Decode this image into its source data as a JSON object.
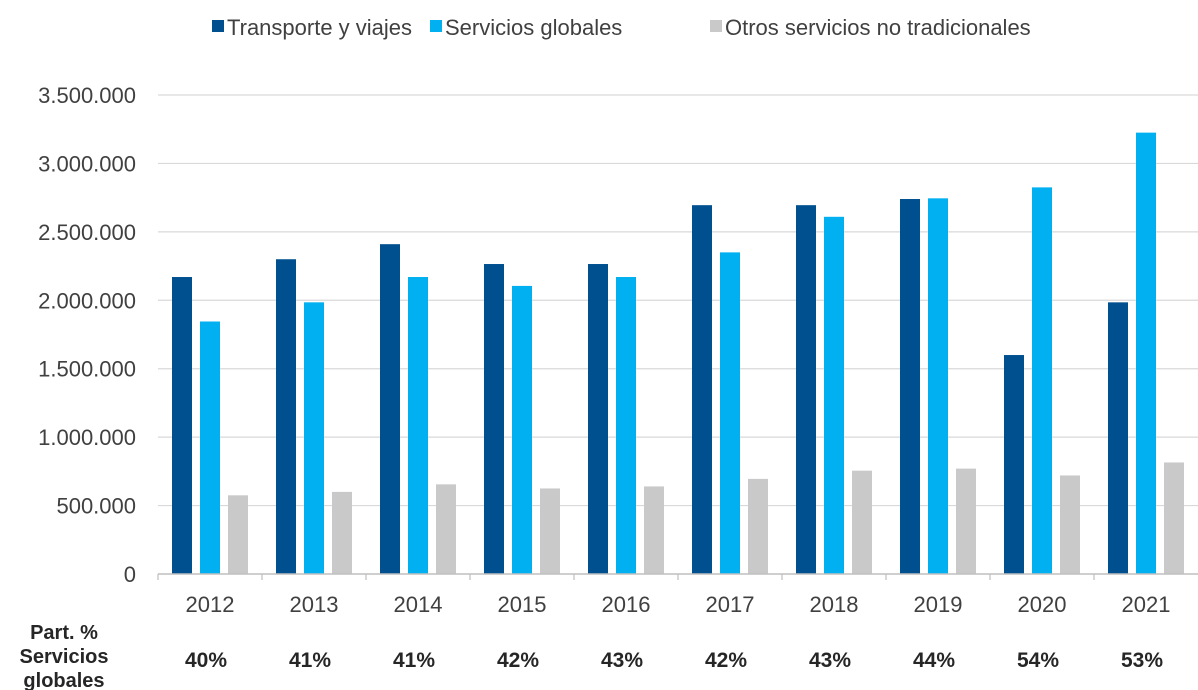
{
  "chart_data": {
    "type": "bar",
    "categories": [
      "2012",
      "2013",
      "2014",
      "2015",
      "2016",
      "2017",
      "2018",
      "2019",
      "2020",
      "2021"
    ],
    "series": [
      {
        "name": "Transporte y viajes",
        "color": "#00508f",
        "values": [
          2170000,
          2300000,
          2410000,
          2265000,
          2265000,
          2695000,
          2695000,
          2740000,
          1600000,
          1985000
        ]
      },
      {
        "name": "Servicios globales",
        "color": "#00b0f0",
        "values": [
          1845000,
          1985000,
          2170000,
          2105000,
          2170000,
          2350000,
          2610000,
          2745000,
          2825000,
          3225000
        ]
      },
      {
        "name": "Otros servicios no tradicionales",
        "color": "#c9c9c9",
        "values": [
          575000,
          600000,
          655000,
          625000,
          640000,
          695000,
          755000,
          770000,
          720000,
          815000
        ]
      }
    ],
    "yticks": [
      "0",
      "500.000",
      "1.000.000",
      "1.500.000",
      "2.000.000",
      "2.500.000",
      "3.000.000",
      "3.500.000"
    ],
    "ylim": [
      0,
      3500000
    ],
    "grid": true,
    "legend_position": "top",
    "share_row": {
      "label_lines": [
        "Part. %",
        "Servicios",
        "globales"
      ],
      "values": [
        "40%",
        "41%",
        "41%",
        "42%",
        "43%",
        "42%",
        "43%",
        "44%",
        "54%",
        "53%"
      ]
    }
  }
}
